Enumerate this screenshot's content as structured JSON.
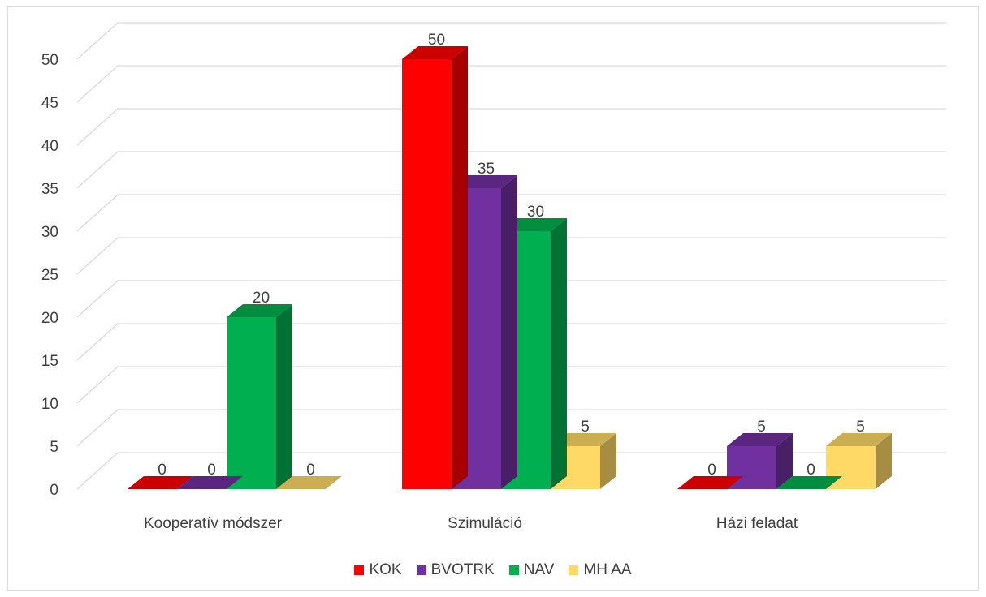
{
  "chart_data": {
    "type": "bar",
    "subtype": "3d-clustered-column",
    "categories": [
      "Kooperatív módszer",
      "Szimuláció",
      "Házi feladat"
    ],
    "series": [
      {
        "name": "KOK",
        "values": [
          0,
          50,
          0
        ],
        "color": "#ff0000"
      },
      {
        "name": "BVOTRK",
        "values": [
          0,
          35,
          5
        ],
        "color": "#7030a0"
      },
      {
        "name": "NAV",
        "values": [
          20,
          30,
          0
        ],
        "color": "#00b050"
      },
      {
        "name": "MH AA",
        "values": [
          0,
          5,
          5
        ],
        "color": "#ffd966"
      }
    ],
    "yticks": [
      "0",
      "5",
      "10",
      "15",
      "20",
      "25",
      "30",
      "35",
      "40",
      "45",
      "50"
    ],
    "ylim": [
      0,
      50
    ],
    "grid": true,
    "legend_position": "bottom",
    "data_labels": true
  }
}
